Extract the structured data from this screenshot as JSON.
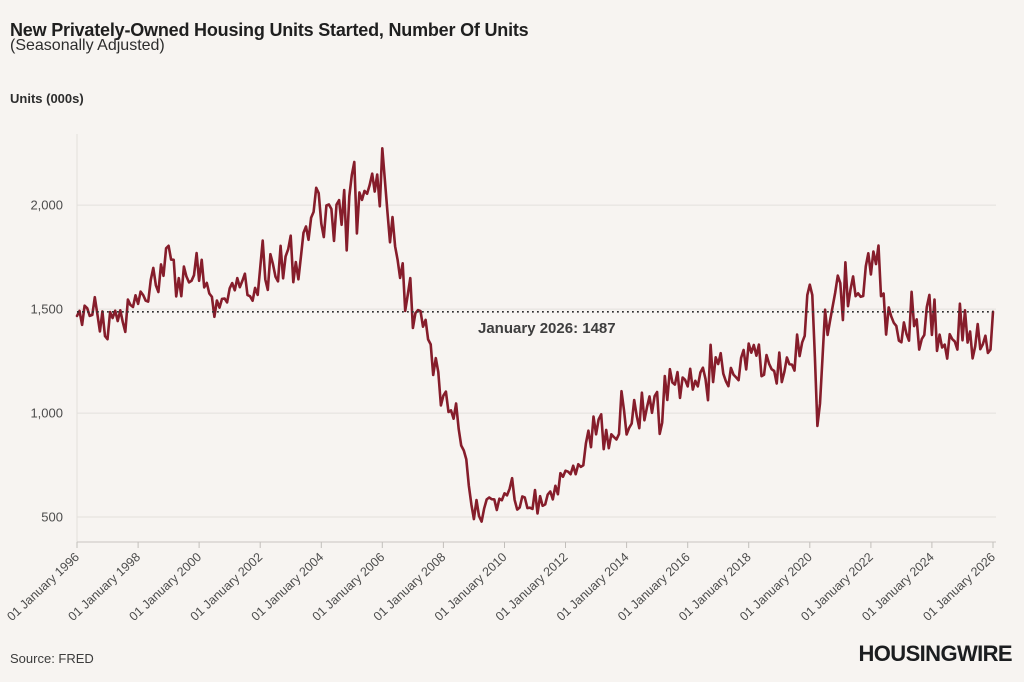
{
  "header": {
    "title": "New Privately-Owned Housing Units Started, Number Of Units",
    "subtitle": "(Seasonally Adjusted)"
  },
  "footer": {
    "source": "Source: FRED",
    "logo": "HOUSINGWIRE"
  },
  "colors": {
    "background": "#F7F4F1",
    "line": "#861D2B",
    "reference_line": "#2F2F2F",
    "gridline": "#E3E0DC",
    "axis": "#C9C5C1",
    "text": "#1F1F1F"
  },
  "chart_data": {
    "type": "line",
    "title": "New Privately-Owned Housing Units Started, Number Of Units",
    "subtitle": "(Seasonally Adjusted)",
    "ylabel": "Units (000s)",
    "xlabel": "",
    "grid": true,
    "legend": false,
    "frequency": "monthly",
    "x_range": [
      "01 January 1996",
      "01 January 2026"
    ],
    "x_tick_labels": [
      "01 January 1996",
      "01 January 1998",
      "01 January 2000",
      "01 January 2002",
      "01 January 2004",
      "01 January 2006",
      "01 January 2008",
      "01 January 2010",
      "01 January 2012",
      "01 January 2014",
      "01 January 2016",
      "01 January 2018",
      "01 January 2020",
      "01 January 2022",
      "01 January 2024",
      "01 January 2026"
    ],
    "x_tick_interval_months": 24,
    "y_ticks": [
      500,
      1000,
      1500,
      2000
    ],
    "ylim": [
      380,
      2361
    ],
    "annotation": {
      "label": "January 2026: 1487",
      "value": 1487
    },
    "values": [
      1467,
      1491,
      1424,
      1516,
      1504,
      1467,
      1472,
      1557,
      1475,
      1392,
      1489,
      1370,
      1355,
      1486,
      1457,
      1492,
      1442,
      1494,
      1437,
      1390,
      1546,
      1520,
      1510,
      1566,
      1525,
      1584,
      1567,
      1540,
      1536,
      1641,
      1698,
      1614,
      1582,
      1715,
      1660,
      1792,
      1804,
      1738,
      1737,
      1561,
      1649,
      1562,
      1704,
      1657,
      1628,
      1636,
      1663,
      1769,
      1636,
      1737,
      1604,
      1626,
      1575,
      1559,
      1463,
      1541,
      1507,
      1549,
      1551,
      1532,
      1600,
      1625,
      1590,
      1649,
      1605,
      1636,
      1670,
      1567,
      1562,
      1540,
      1602,
      1568,
      1698,
      1829,
      1642,
      1592,
      1764,
      1717,
      1655,
      1633,
      1804,
      1648,
      1753,
      1788,
      1853,
      1629,
      1726,
      1643,
      1751,
      1867,
      1897,
      1833,
      1939,
      1967,
      2083,
      2057,
      1911,
      1846,
      1998,
      2003,
      1981,
      1828,
      2002,
      2024,
      1905,
      2072,
      1782,
      2042,
      2144,
      2207,
      1864,
      2061,
      2025,
      2068,
      2054,
      2095,
      2151,
      2065,
      2147,
      1994,
      2273,
      2119,
      1969,
      1821,
      1942,
      1802,
      1737,
      1650,
      1720,
      1491,
      1570,
      1649,
      1409,
      1480,
      1495,
      1490,
      1415,
      1448,
      1354,
      1330,
      1183,
      1264,
      1197,
      1037,
      1084,
      1103,
      1005,
      1013,
      973,
      1046,
      923,
      844,
      820,
      777,
      652,
      560,
      490,
      582,
      505,
      478,
      540,
      585,
      594,
      586,
      585,
      534,
      588,
      581,
      614,
      604,
      636,
      687,
      583,
      536,
      546,
      599,
      594,
      543,
      545,
      539,
      630,
      517,
      600,
      554,
      561,
      608,
      623,
      585,
      650,
      610,
      711,
      694,
      723,
      718,
      706,
      747,
      706,
      754,
      741,
      749,
      854,
      915,
      836,
      983,
      898,
      969,
      994,
      826,
      919,
      831,
      898,
      885,
      873,
      899,
      1105,
      1010,
      897,
      928,
      950,
      1063,
      984,
      927,
      1098,
      965,
      1028,
      1080,
      1001,
      1081,
      1101,
      900,
      954,
      1178,
      1063,
      1211,
      1147,
      1137,
      1197,
      1073,
      1171,
      1160,
      1128,
      1213,
      1113,
      1155,
      1128,
      1195,
      1218,
      1164,
      1062,
      1328,
      1149,
      1268,
      1236,
      1288,
      1189,
      1154,
      1129,
      1217,
      1185,
      1172,
      1158,
      1265,
      1303,
      1210,
      1334,
      1290,
      1327,
      1276,
      1329,
      1177,
      1184,
      1279,
      1237,
      1211,
      1202,
      1142,
      1291,
      1149,
      1199,
      1267,
      1235,
      1233,
      1204,
      1377,
      1274,
      1340,
      1371,
      1567,
      1617,
      1567,
      1269,
      938,
      1046,
      1265,
      1497,
      1376,
      1448,
      1514,
      1579,
      1661,
      1625,
      1447,
      1725,
      1514,
      1594,
      1657,
      1562,
      1576,
      1559,
      1563,
      1706,
      1768,
      1666,
      1777,
      1716,
      1805,
      1562,
      1575,
      1377,
      1508,
      1465,
      1434,
      1419,
      1348,
      1340,
      1436,
      1380,
      1348,
      1583,
      1418,
      1451,
      1305,
      1356,
      1376,
      1510,
      1568,
      1376,
      1546,
      1299,
      1377,
      1315,
      1329,
      1262,
      1379,
      1355,
      1344,
      1305,
      1526,
      1350,
      1494,
      1339,
      1392,
      1263,
      1321,
      1428,
      1307,
      1330,
      1372,
      1289,
      1305,
      1487
    ]
  }
}
